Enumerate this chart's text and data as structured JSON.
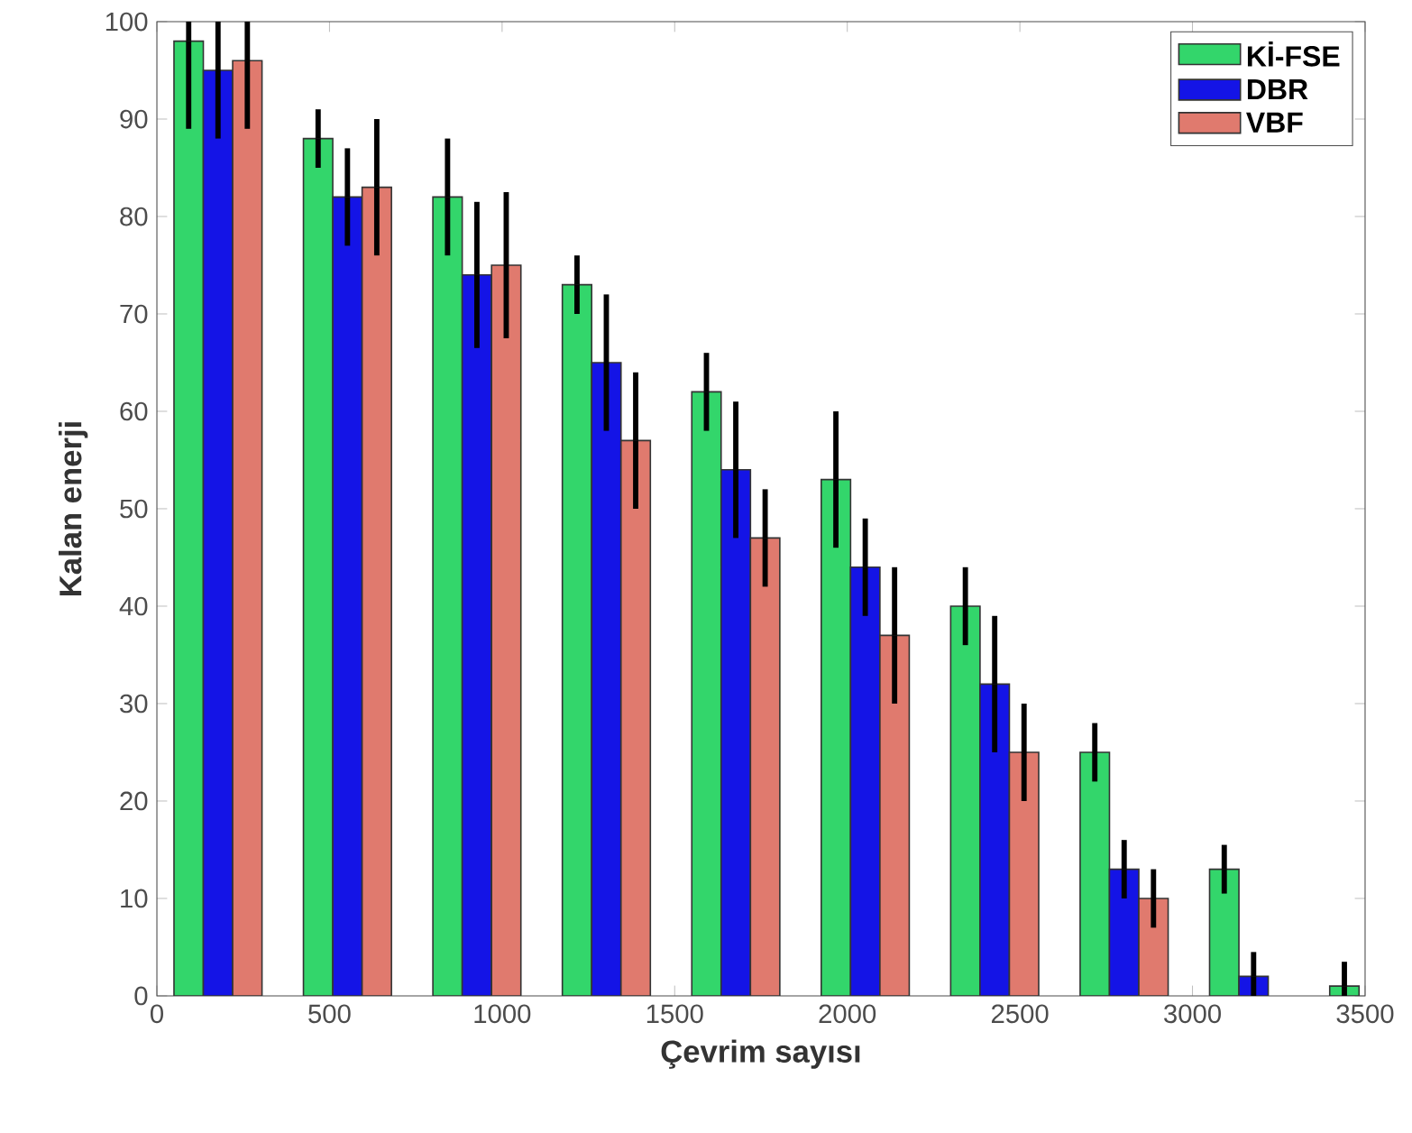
{
  "chart_data": {
    "type": "bar",
    "xlabel": "Çevrim sayısı",
    "ylabel": "Kalan enerji",
    "xlim": [
      0,
      3500
    ],
    "xticks": [
      0,
      500,
      1000,
      1500,
      2000,
      2500,
      3000,
      3500
    ],
    "ylim": [
      0,
      100
    ],
    "yticks": [
      0,
      10,
      20,
      30,
      40,
      50,
      60,
      70,
      80,
      90,
      100
    ],
    "legend": "top right",
    "grid": false,
    "series": [
      {
        "name": "Kİ-FSE",
        "color": "#33d66b",
        "x": [
          92,
          467,
          842,
          1217,
          1592,
          1967,
          2342,
          2717,
          3092,
          3440
        ],
        "values": [
          98,
          88,
          82,
          73,
          62,
          53,
          40,
          25,
          13,
          1
        ],
        "errors": [
          9,
          3,
          6,
          3,
          4,
          7,
          4,
          3,
          2.5,
          2.5
        ]
      },
      {
        "name": "DBR",
        "color": "#1414e6",
        "x": [
          177,
          552,
          927,
          1302,
          1677,
          2052,
          2427,
          2802,
          3177,
          null
        ],
        "values": [
          95,
          82,
          74,
          65,
          54,
          44,
          32,
          13,
          2,
          null
        ],
        "errors": [
          7,
          5,
          7.5,
          7,
          7,
          5,
          7,
          3,
          2.5,
          null
        ]
      },
      {
        "name": "VBF",
        "color": "#e07a6e",
        "x": [
          262,
          637,
          1012,
          1387,
          1762,
          2137,
          2512,
          2887,
          null,
          null
        ],
        "values": [
          96,
          83,
          75,
          57,
          47,
          37,
          25,
          10,
          null,
          null
        ],
        "errors": [
          7,
          7,
          7.5,
          7,
          5,
          7,
          5,
          3,
          null,
          null
        ]
      }
    ]
  }
}
